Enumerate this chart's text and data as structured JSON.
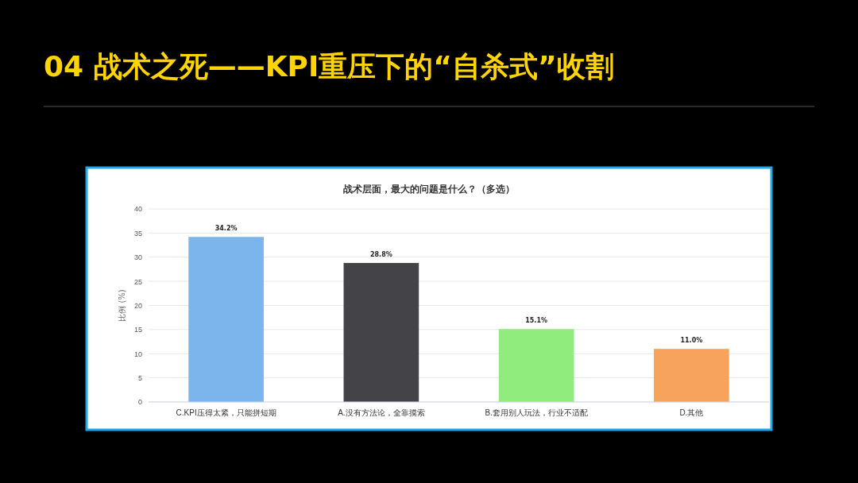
{
  "chart_data": {
    "type": "bar",
    "title": "04 战术之死——KPI重压下的“自杀式”收割",
    "subtitle": "战术层面，最大的问题是什么？（多选）",
    "ylabel": "比例 (%)",
    "categories": [
      "C.KPI压得太紧，只能拼短期",
      "A.没有方法论，全靠摸索",
      "B.套用别人玩法，行业不适配",
      "D.其他"
    ],
    "values": [
      34.2,
      28.8,
      15.1,
      11.0
    ],
    "value_labels": [
      "34.2%",
      "28.8%",
      "15.1%",
      "11.0%"
    ],
    "colors": [
      "#7cb5ec",
      "#434348",
      "#90ed7d",
      "#f7a35c"
    ],
    "ylim": [
      0,
      40
    ],
    "yticks": [
      0,
      5,
      10,
      15,
      20,
      25,
      30,
      35,
      40
    ],
    "grid": "y"
  }
}
